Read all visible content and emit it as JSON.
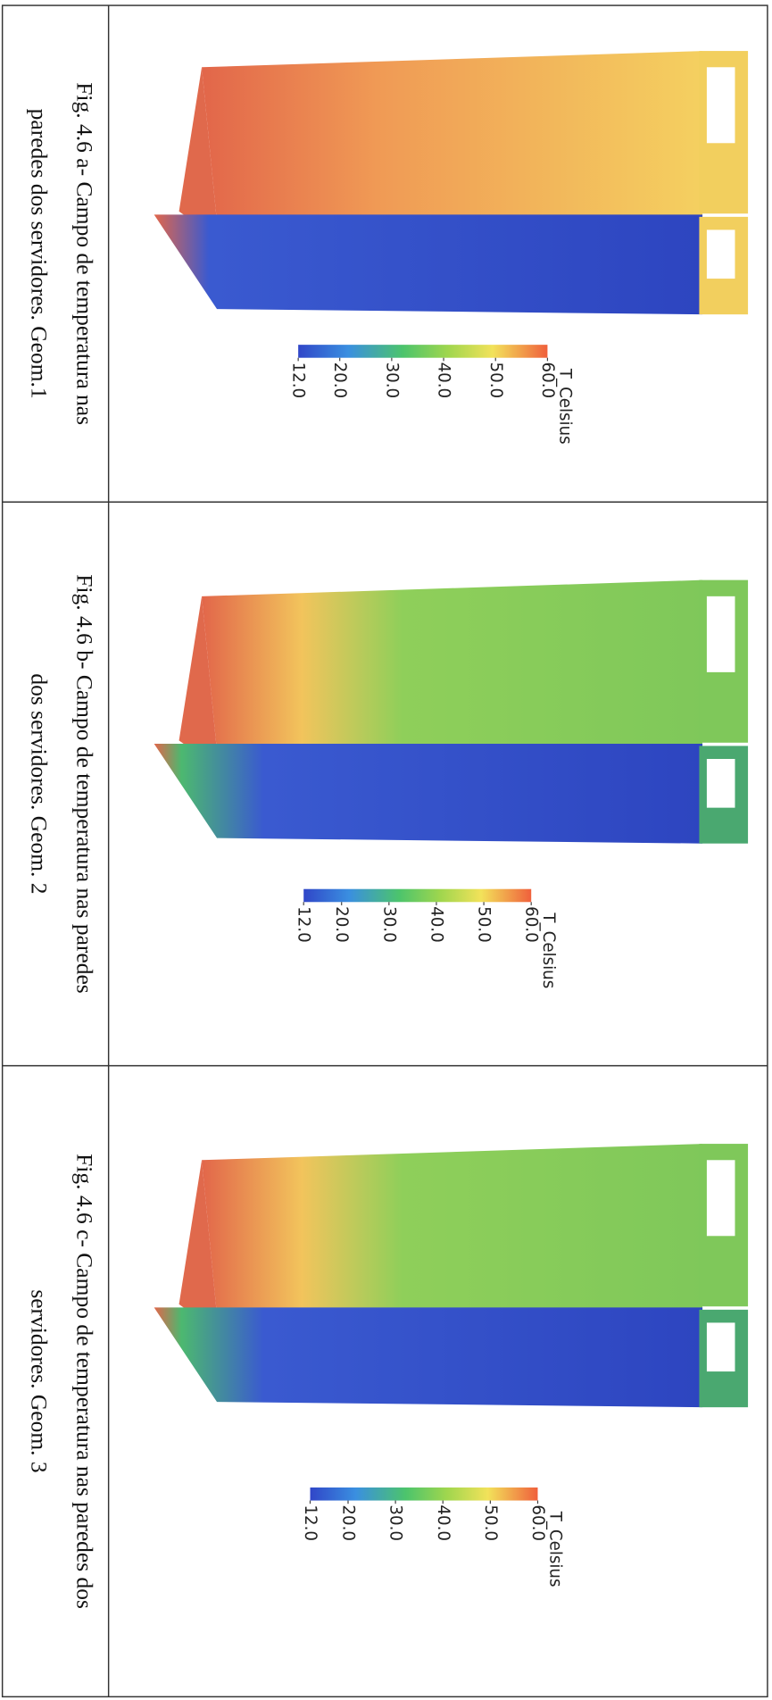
{
  "table": {
    "rows": [
      {
        "caption": [
          "Fig. 4.6 a- Campo de temperatura nas",
          "paredes dos servidores. Geom.1"
        ],
        "colorbar": {
          "title": "T_Celsius",
          "lim": [
            12,
            60
          ],
          "ticks": [
            {
              "value": 60,
              "label": "60.0"
            },
            {
              "value": 50,
              "label": "50.0"
            },
            {
              "value": 40,
              "label": "40.0"
            },
            {
              "value": 30,
              "label": "30.0"
            },
            {
              "value": 20,
              "label": "20.0"
            },
            {
              "value": 12,
              "label": "12.0"
            }
          ]
        }
      },
      {
        "caption": [
          "Fig. 4.6 b- Campo de temperatura nas paredes",
          "dos servidores. Geom. 2"
        ],
        "colorbar": {
          "title": "T_Celsius",
          "lim": [
            12,
            60
          ],
          "ticks": [
            {
              "value": 60,
              "label": "60.0"
            },
            {
              "value": 50,
              "label": "50.0"
            },
            {
              "value": 40,
              "label": "40.0"
            },
            {
              "value": 30,
              "label": "30.0"
            },
            {
              "value": 20,
              "label": "20.0"
            },
            {
              "value": 12,
              "label": "12.0"
            }
          ]
        }
      },
      {
        "caption": [
          "Fig. 4.6 c- Campo de temperatura nas paredes dos",
          "servidores. Geom. 3"
        ],
        "colorbar": {
          "title": "T_Celsius",
          "lim": [
            12,
            60
          ],
          "ticks": [
            {
              "value": 60,
              "label": "60.0"
            },
            {
              "value": 50,
              "label": "50.0"
            },
            {
              "value": 40,
              "label": "40.0"
            },
            {
              "value": 30,
              "label": "30.0"
            },
            {
              "value": 20,
              "label": "20.0"
            },
            {
              "value": 12,
              "label": "12.0"
            }
          ]
        }
      }
    ]
  }
}
